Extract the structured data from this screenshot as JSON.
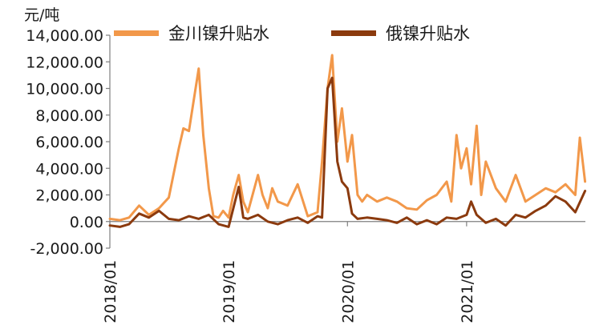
{
  "chart_data": {
    "type": "line",
    "unit_label": "元/吨",
    "y_ticks": [
      "14,000.00",
      "12,000.00",
      "10,000.00",
      "8,000.00",
      "6,000.00",
      "4,000.00",
      "2,000.00",
      "0.00",
      "-2,000.00"
    ],
    "x_ticks": [
      "2018/01",
      "2019/01",
      "2020/01",
      "2021/01"
    ],
    "ylim": [
      -2000,
      14000
    ],
    "xlim": [
      "2018-01-01",
      "2022-01-01"
    ],
    "colors": {
      "jinchuan": "#f2984a",
      "russian": "#8b3a0e",
      "axis": "#7f7f7f"
    },
    "series": [
      {
        "name": "金川镍升贴水",
        "x": [
          "2018-01-01",
          "2018-02-01",
          "2018-03-01",
          "2018-04-01",
          "2018-05-01",
          "2018-06-01",
          "2018-07-01",
          "2018-08-01",
          "2018-08-15",
          "2018-09-01",
          "2018-09-15",
          "2018-10-01",
          "2018-10-15",
          "2018-11-01",
          "2018-11-15",
          "2018-12-01",
          "2018-12-15",
          "2019-01-01",
          "2019-01-15",
          "2019-02-01",
          "2019-02-15",
          "2019-03-01",
          "2019-04-01",
          "2019-04-15",
          "2019-05-01",
          "2019-05-15",
          "2019-06-01",
          "2019-07-01",
          "2019-08-01",
          "2019-09-01",
          "2019-10-01",
          "2019-10-15",
          "2019-11-01",
          "2019-11-15",
          "2019-12-01",
          "2019-12-15",
          "2020-01-01",
          "2020-01-15",
          "2020-02-01",
          "2020-02-15",
          "2020-03-01",
          "2020-04-01",
          "2020-05-01",
          "2020-06-01",
          "2020-07-01",
          "2020-08-01",
          "2020-09-01",
          "2020-10-01",
          "2020-11-01",
          "2020-11-15",
          "2020-12-01",
          "2020-12-15",
          "2021-01-01",
          "2021-01-15",
          "2021-02-01",
          "2021-02-15",
          "2021-03-01",
          "2021-04-01",
          "2021-05-01",
          "2021-06-01",
          "2021-07-01",
          "2021-08-01",
          "2021-09-01",
          "2021-10-01",
          "2021-11-01",
          "2021-12-01",
          "2021-12-15",
          "2021-12-31"
        ],
        "values": [
          200,
          100,
          300,
          1200,
          500,
          1000,
          1800,
          5500,
          7000,
          6800,
          9000,
          11500,
          6500,
          2500,
          400,
          300,
          800,
          300,
          2000,
          3500,
          1500,
          700,
          3500,
          2000,
          1000,
          2500,
          1500,
          1200,
          2800,
          400,
          700,
          4500,
          10000,
          12500,
          6000,
          8500,
          4500,
          6500,
          2000,
          1500,
          2000,
          1500,
          1800,
          1500,
          1000,
          900,
          1600,
          2000,
          3000,
          1500,
          6500,
          4000,
          5500,
          2800,
          7200,
          2000,
          4500,
          2500,
          1500,
          3500,
          1500,
          2000,
          2500,
          2200,
          2800,
          2000,
          6300,
          3000
        ],
        "labels": [
          "金川镍升贴水"
        ]
      },
      {
        "name": "俄镍升贴水",
        "x": [
          "2018-01-01",
          "2018-02-01",
          "2018-03-01",
          "2018-04-01",
          "2018-05-01",
          "2018-06-01",
          "2018-07-01",
          "2018-08-01",
          "2018-09-01",
          "2018-10-01",
          "2018-11-01",
          "2018-12-01",
          "2019-01-01",
          "2019-02-01",
          "2019-02-15",
          "2019-03-01",
          "2019-04-01",
          "2019-05-01",
          "2019-06-01",
          "2019-07-01",
          "2019-08-01",
          "2019-09-01",
          "2019-10-01",
          "2019-10-15",
          "2019-11-01",
          "2019-11-15",
          "2019-12-01",
          "2019-12-15",
          "2020-01-01",
          "2020-01-15",
          "2020-02-01",
          "2020-03-01",
          "2020-04-01",
          "2020-05-01",
          "2020-06-01",
          "2020-07-01",
          "2020-08-01",
          "2020-09-01",
          "2020-10-01",
          "2020-11-01",
          "2020-12-01",
          "2021-01-01",
          "2021-01-15",
          "2021-02-01",
          "2021-03-01",
          "2021-04-01",
          "2021-05-01",
          "2021-06-01",
          "2021-07-01",
          "2021-08-01",
          "2021-09-01",
          "2021-10-01",
          "2021-11-01",
          "2021-12-01",
          "2021-12-31"
        ],
        "values": [
          -300,
          -400,
          -200,
          600,
          300,
          800,
          200,
          100,
          400,
          200,
          500,
          -200,
          -400,
          2600,
          300,
          200,
          500,
          0,
          -200,
          100,
          300,
          -100,
          400,
          300,
          10000,
          10800,
          4500,
          3000,
          2500,
          600,
          200,
          300,
          200,
          100,
          -100,
          300,
          -200,
          100,
          -200,
          300,
          200,
          500,
          1500,
          500,
          -100,
          200,
          -300,
          500,
          300,
          800,
          1200,
          1900,
          1500,
          700,
          2300
        ],
        "labels": [
          "俄镍升贴水"
        ]
      }
    ]
  }
}
